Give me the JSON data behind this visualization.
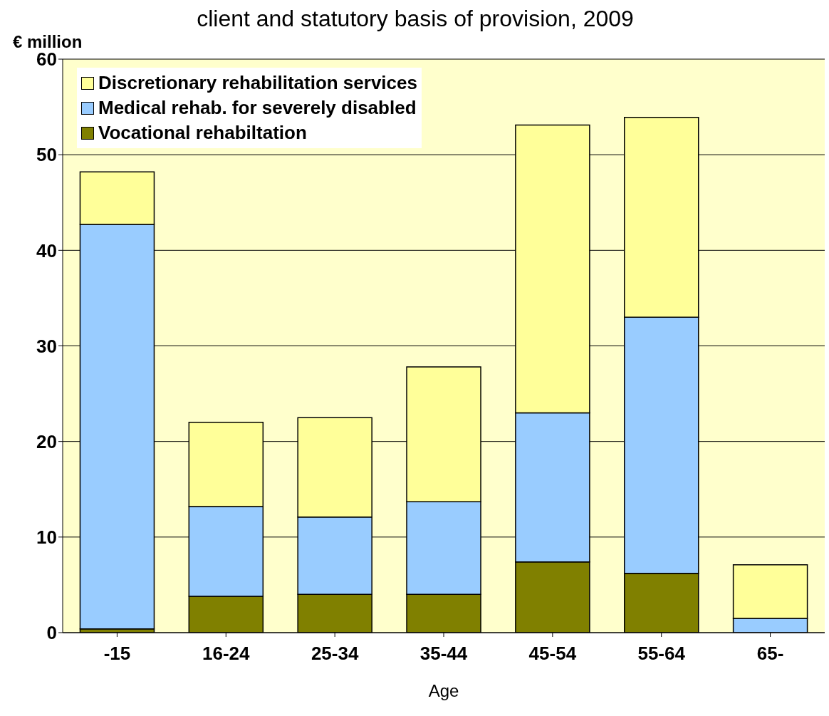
{
  "chart_data": {
    "type": "bar",
    "title": "client and statutory basis of provision, 2009",
    "xlabel": "Age",
    "ylabel": "€ million",
    "categories": [
      "-15",
      "16-24",
      "25-34",
      "35-44",
      "45-54",
      "55-64",
      "65-"
    ],
    "series": [
      {
        "name": "Vocational rehabiltation",
        "color": "#808000",
        "values": [
          0.4,
          3.8,
          4.0,
          4.0,
          7.4,
          6.2,
          0
        ]
      },
      {
        "name": "Medical rehab. for severely disabled",
        "color": "#99ccff",
        "values": [
          42.3,
          9.4,
          8.1,
          9.7,
          15.6,
          26.8,
          1.5
        ]
      },
      {
        "name": "Discretionary rehabilitation services",
        "color": "#ffff99",
        "values": [
          5.5,
          8.8,
          10.4,
          14.1,
          30.1,
          20.9,
          5.6
        ]
      }
    ],
    "stacked": true,
    "ylim": [
      0,
      60
    ],
    "yticks": [
      0,
      10,
      20,
      30,
      40,
      50,
      60
    ],
    "grid": "y",
    "legend": "top left"
  }
}
